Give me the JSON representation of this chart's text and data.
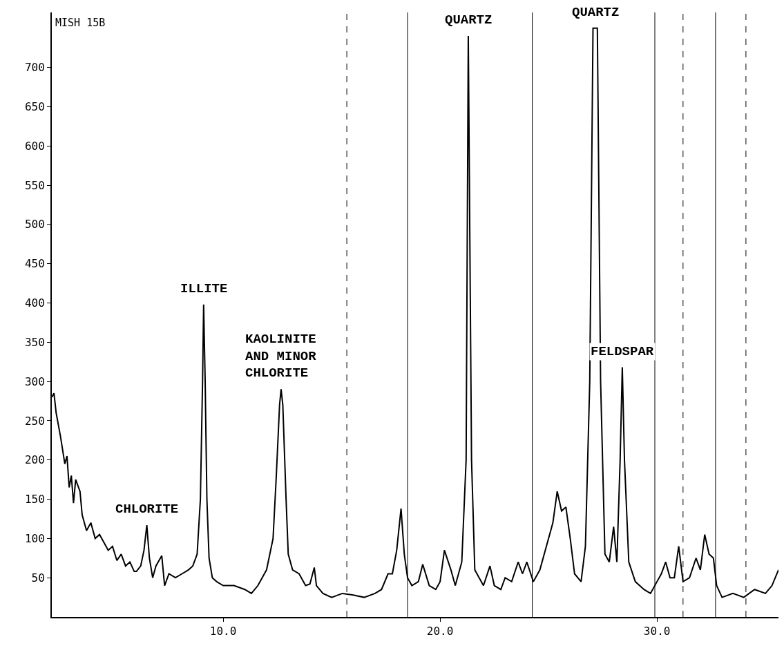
{
  "chart_data": {
    "type": "line",
    "x": [
      2.1,
      2.2,
      2.3,
      2.5,
      2.7,
      2.8,
      2.9,
      3.0,
      3.1,
      3.2,
      3.4,
      3.5,
      3.7,
      3.9,
      4.1,
      4.3,
      4.5,
      4.7,
      4.9,
      5.1,
      5.3,
      5.5,
      5.7,
      5.9,
      6.0,
      6.2,
      6.35,
      6.48,
      6.6,
      6.75,
      6.9,
      7.17,
      7.3,
      7.5,
      7.8,
      8.1,
      8.4,
      8.6,
      8.8,
      8.95,
      9.05,
      9.1,
      9.17,
      9.25,
      9.35,
      9.5,
      9.7,
      10.0,
      10.5,
      11.0,
      11.3,
      11.6,
      11.9,
      12.0,
      12.3,
      12.45,
      12.6,
      12.67,
      12.75,
      12.9,
      13.0,
      13.2,
      13.5,
      13.8,
      14.0,
      14.2,
      14.3,
      14.6,
      15.0,
      15.5,
      16.0,
      16.5,
      17.0,
      17.3,
      17.6,
      17.8,
      18.0,
      18.2,
      18.35,
      18.5,
      18.7,
      19.0,
      19.2,
      19.5,
      19.8,
      20.0,
      20.2,
      20.5,
      20.7,
      21.0,
      21.2,
      21.3,
      21.45,
      21.6,
      21.8,
      22.0,
      22.3,
      22.5,
      22.8,
      23.0,
      23.3,
      23.6,
      23.8,
      24.0,
      24.3,
      24.6,
      24.9,
      25.2,
      25.4,
      25.6,
      25.8,
      26.0,
      26.2,
      26.5,
      26.7,
      26.9,
      27.05,
      27.25,
      27.4,
      27.6,
      27.8,
      28.0,
      28.15,
      28.3,
      28.4,
      28.5,
      28.7,
      29.0,
      29.4,
      29.7,
      30.0,
      30.2,
      30.4,
      30.6,
      30.8,
      31.0,
      31.2,
      31.5,
      31.8,
      32.0,
      32.2,
      32.4,
      32.6,
      32.75,
      33.0,
      33.5,
      34.0,
      34.5,
      35.0,
      35.3,
      35.6
    ],
    "series": [
      {
        "color": "#000000",
        "values": [
          280,
          285,
          260,
          230,
          195,
          205,
          165,
          180,
          145,
          175,
          160,
          130,
          110,
          120,
          100,
          105,
          95,
          85,
          90,
          72,
          80,
          65,
          70,
          58,
          58,
          65,
          85,
          117,
          75,
          50,
          65,
          78,
          40,
          55,
          50,
          55,
          60,
          65,
          80,
          150,
          300,
          398,
          300,
          150,
          75,
          50,
          45,
          40,
          40,
          35,
          30,
          40,
          55,
          60,
          100,
          180,
          270,
          290,
          270,
          150,
          80,
          60,
          55,
          40,
          42,
          63,
          40,
          30,
          25,
          30,
          28,
          25,
          30,
          35,
          55,
          55,
          85,
          138,
          80,
          50,
          40,
          45,
          67,
          40,
          35,
          45,
          85,
          60,
          40,
          70,
          200,
          740,
          200,
          60,
          50,
          40,
          65,
          40,
          35,
          50,
          45,
          70,
          55,
          70,
          45,
          60,
          90,
          120,
          160,
          135,
          140,
          100,
          55,
          45,
          90,
          300,
          750,
          750,
          300,
          80,
          70,
          115,
          70,
          200,
          318,
          200,
          70,
          45,
          35,
          30,
          45,
          55,
          70,
          50,
          50,
          90,
          45,
          50,
          75,
          60,
          105,
          80,
          75,
          40,
          25,
          30,
          25,
          35,
          30,
          40,
          60
        ]
      }
    ],
    "xlim": [
      2.1,
      35.6
    ],
    "ylim": [
      0,
      770
    ],
    "xticks": [
      {
        "value": 10,
        "label": "10.0"
      },
      {
        "value": 20,
        "label": "20.0"
      },
      {
        "value": 30,
        "label": "30.0"
      }
    ],
    "yticks": [
      50,
      100,
      150,
      200,
      250,
      300,
      350,
      400,
      450,
      500,
      550,
      600,
      650,
      700
    ],
    "marker": "none",
    "line_style": "solid",
    "ref_lines": [
      {
        "axis": "x",
        "value": 18.5,
        "label": null
      },
      {
        "axis": "x",
        "value": 24.25,
        "label": null
      },
      {
        "axis": "x",
        "value": 29.9,
        "label": null
      },
      {
        "axis": "x",
        "value": 32.7,
        "label": null
      },
      {
        "axis": "x",
        "value": 15.7,
        "label": null,
        "line_style": "dashed"
      },
      {
        "axis": "x",
        "value": 31.2,
        "label": null,
        "line_style": "dashed"
      },
      {
        "axis": "x",
        "value": 34.1,
        "label": null,
        "line_style": "dashed"
      }
    ],
    "annotations": [
      "MISH 15B",
      {
        "text": "CHLORITE",
        "x": 6.48,
        "y": 117
      },
      {
        "text": "ILLITE",
        "x": 9.1,
        "y": 398
      },
      {
        "text": "KAOLINITE\nAND MINOR\nCHLORITE",
        "x": 12.67,
        "y": 290
      },
      {
        "text": "QUARTZ",
        "x": 21.3,
        "y": 740
      },
      {
        "text": "QUARTZ",
        "x": 27.15,
        "y": 750
      },
      {
        "text": "FELDSPAR",
        "x": 28.4,
        "y": 318
      }
    ]
  }
}
